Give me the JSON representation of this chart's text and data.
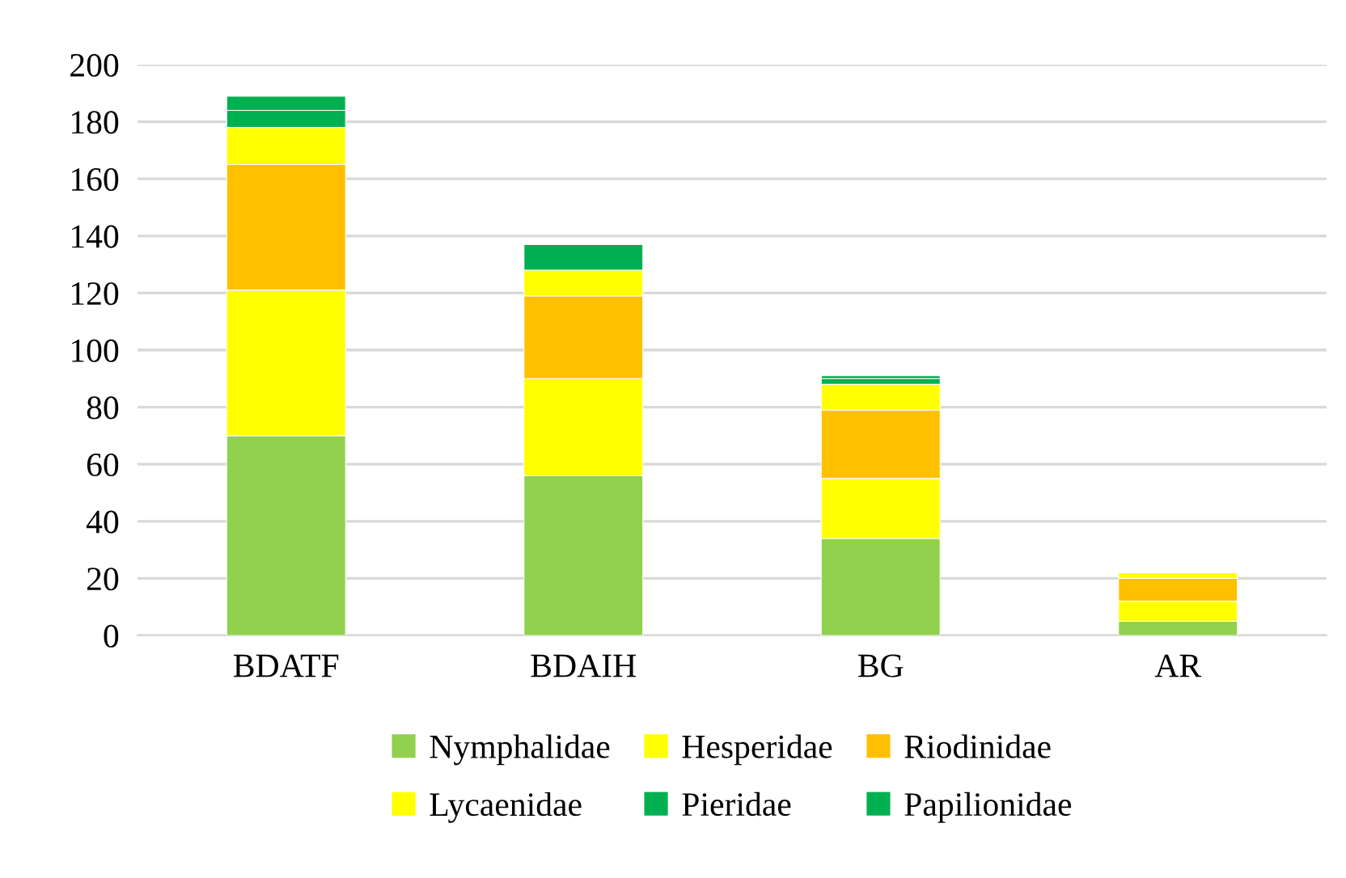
{
  "chart_data": {
    "type": "bar",
    "stacked": true,
    "categories": [
      "BDATF",
      "BDAIH",
      "BG",
      "AR"
    ],
    "series": [
      {
        "name": "Nymphalidae",
        "color": "#92d050",
        "values": [
          70,
          56,
          34,
          5
        ]
      },
      {
        "name": "Hesperidae",
        "color": "#ffff00",
        "values": [
          51,
          34,
          21,
          7
        ]
      },
      {
        "name": "Riodinidae",
        "color": "#ffc000",
        "values": [
          44,
          29,
          24,
          8
        ]
      },
      {
        "name": "Lycaenidae",
        "color": "#ffff00",
        "values": [
          13,
          9,
          9,
          2
        ]
      },
      {
        "name": "Pieridae",
        "color": "#00b050",
        "values": [
          6,
          9,
          2,
          null
        ]
      },
      {
        "name": "Papilionidae",
        "color": "#00b050",
        "values": [
          5,
          null,
          1,
          null
        ]
      }
    ],
    "ylim": [
      0,
      200
    ],
    "yticks": [
      0,
      20,
      40,
      60,
      80,
      100,
      120,
      140,
      160,
      180,
      200
    ],
    "grid": "y",
    "legend": "bottom"
  }
}
